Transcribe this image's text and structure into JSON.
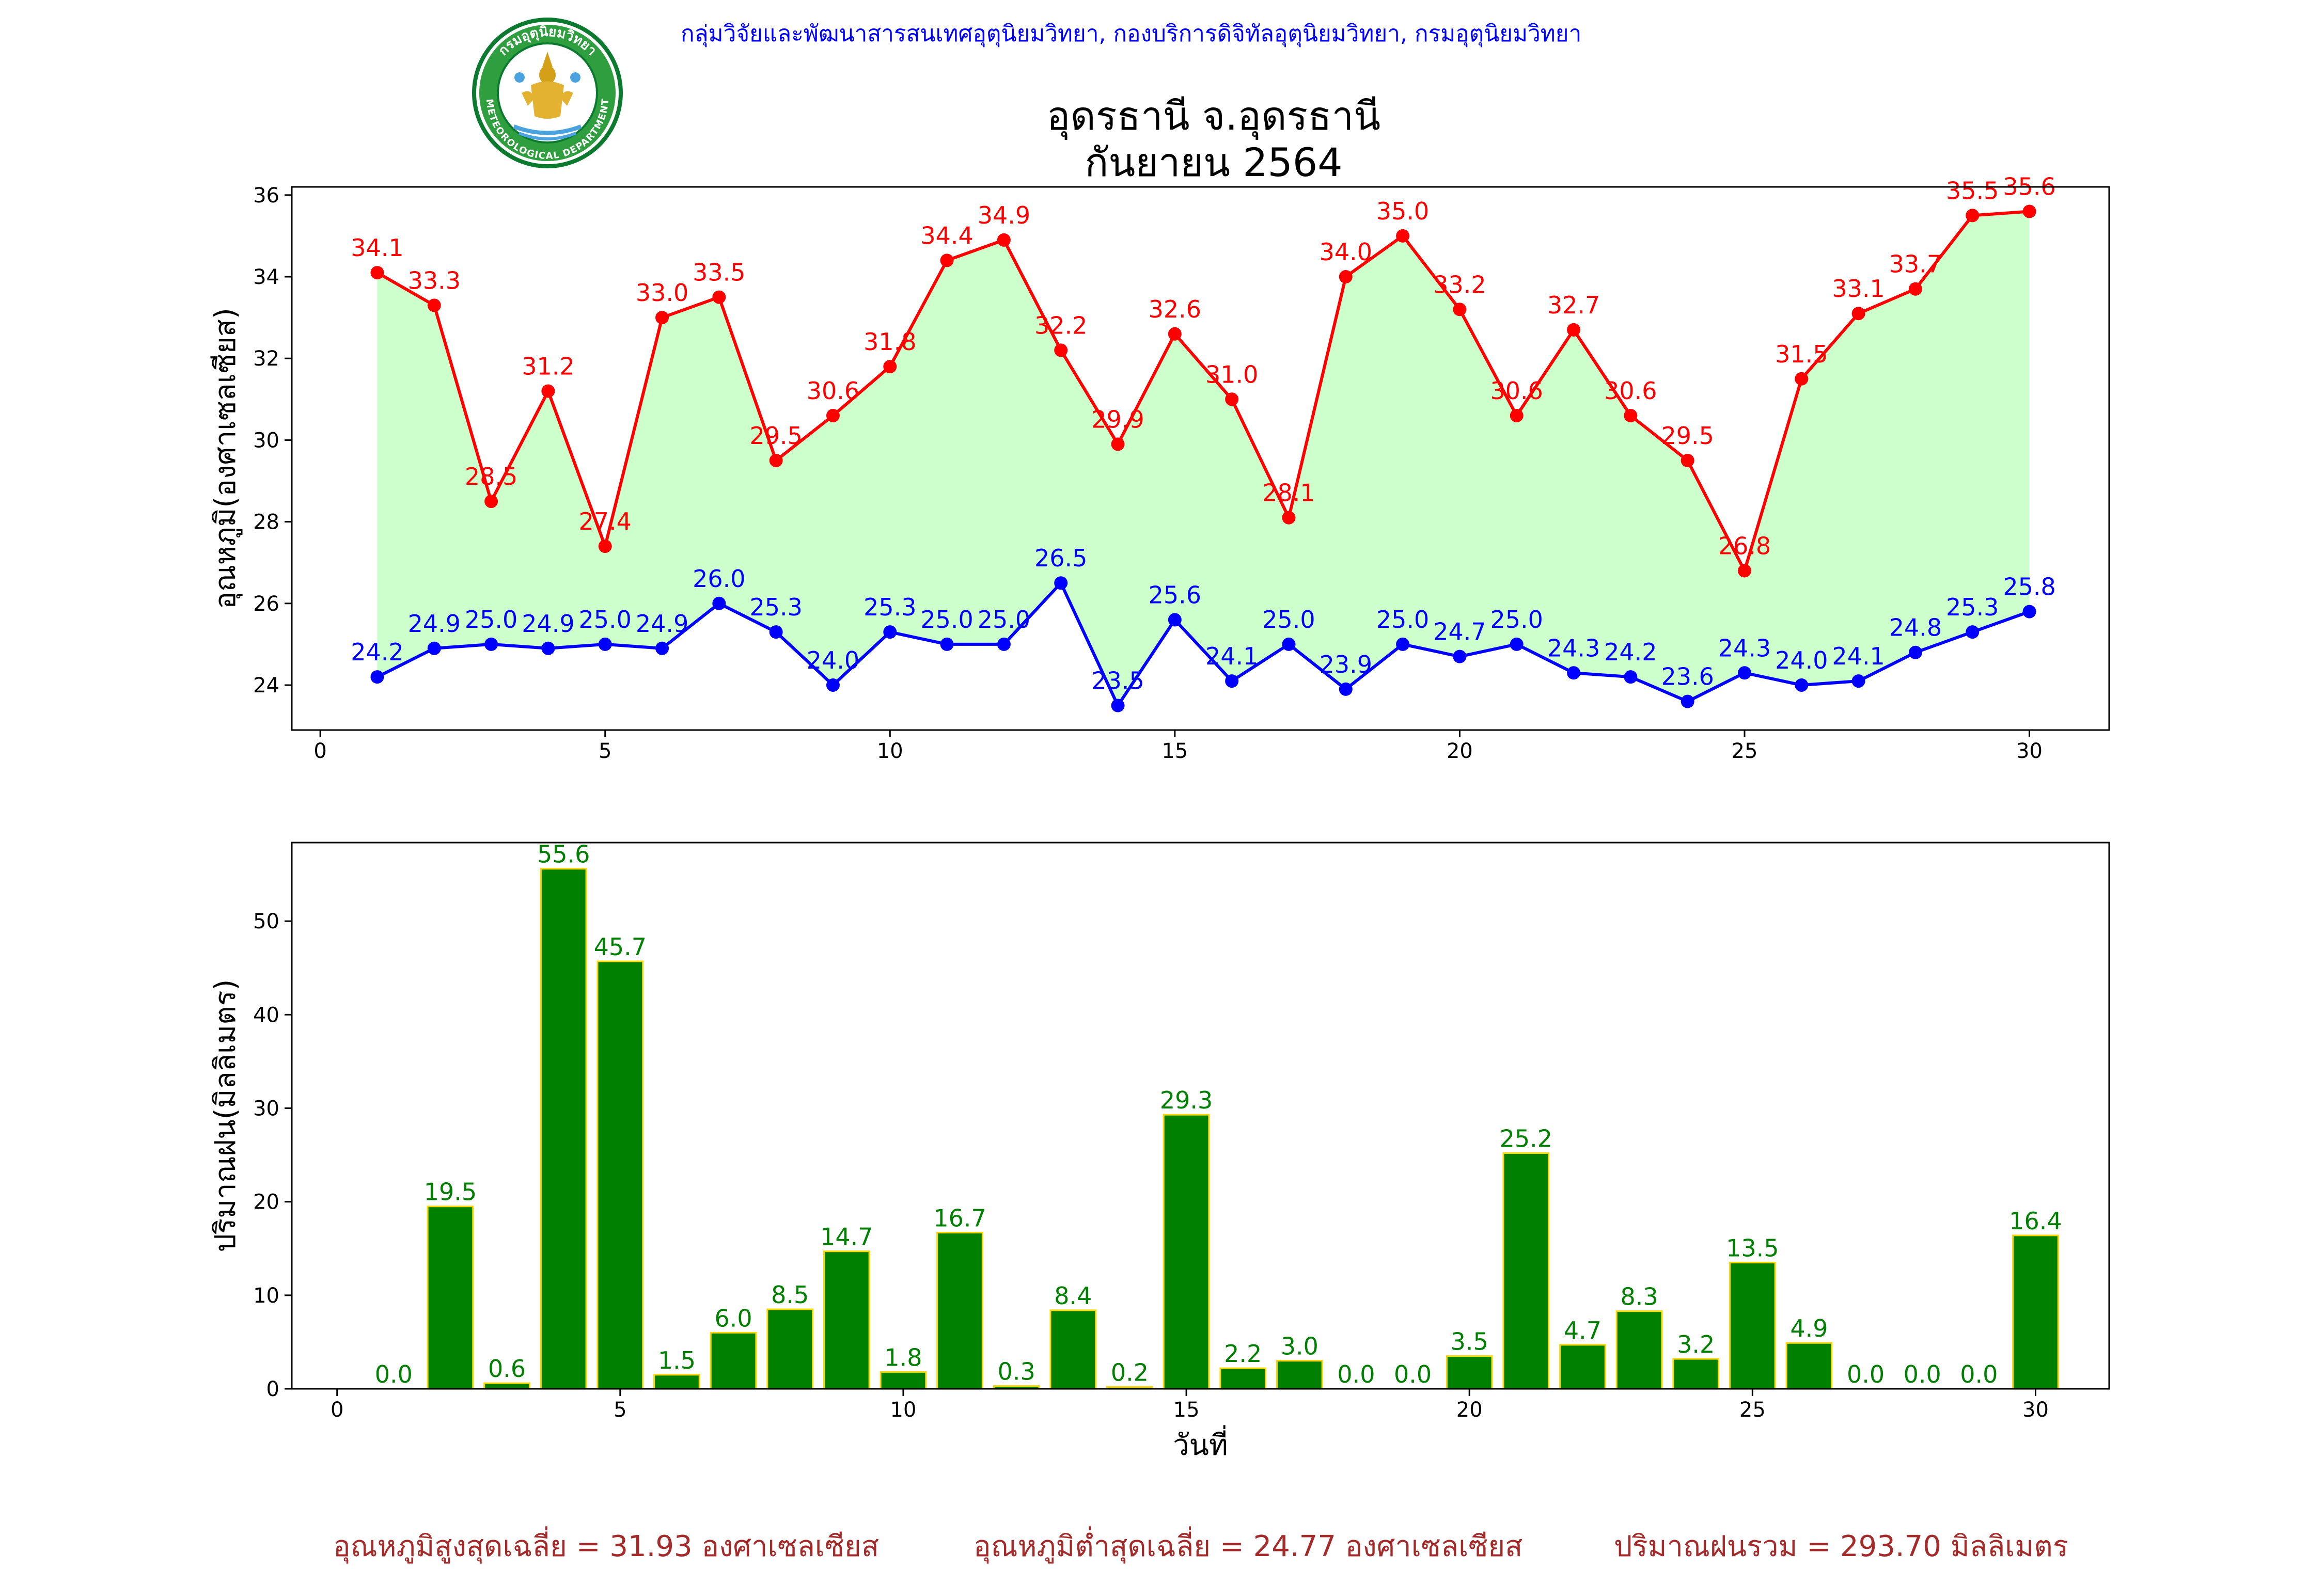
{
  "header": {
    "credit": "กลุ่มวิจัยและพัฒนาสารสนเทศอุตุนิยมวิทยา, กองบริการดิจิทัลอุตุนิยมวิทยา, กรมอุตุนิยมวิทยา",
    "logo_text_top": "กรมอุตุนิยมวิทยา",
    "logo_text_bottom": "METEOROLOGICAL DEPARTMENT",
    "title_line1": "อุดรธานี จ.อุดรธานี",
    "title_line2": "กันยายน 2564"
  },
  "footer": {
    "avg_max": "อุณหภูมิสูงสุดเฉลี่ย = 31.93 องศาเซลเซียส",
    "avg_min": "อุณหภูมิต่ำสุดเฉลี่ย = 24.77 องศาเซลเซียส",
    "total_rain": "ปริมาณฝนรวม = 293.70 มิลลิเมตร"
  },
  "colors": {
    "max_line": "#ff0000",
    "min_line": "#0000ff",
    "fill": "#ccffcc",
    "rain_bar": "#008000",
    "rain_edge": "#ffd700",
    "rain_label": "#008000"
  },
  "chart_data": [
    {
      "type": "line",
      "xlabel": "",
      "ylabel": "อุณหภูมิ(องศาเซลเซียส)",
      "xlim": [
        -0.5,
        31.4
      ],
      "ylim": [
        22.9,
        36.2
      ],
      "xticks": [
        0,
        5,
        10,
        15,
        20,
        25,
        30
      ],
      "yticks": [
        24,
        26,
        28,
        30,
        32,
        34,
        36
      ],
      "x": [
        1,
        2,
        3,
        4,
        5,
        6,
        7,
        8,
        9,
        10,
        11,
        12,
        13,
        14,
        15,
        16,
        17,
        18,
        19,
        20,
        21,
        22,
        23,
        24,
        25,
        26,
        27,
        28,
        29,
        30
      ],
      "series": [
        {
          "values": [
            34.1,
            33.3,
            28.5,
            31.2,
            27.4,
            33.0,
            33.5,
            29.5,
            30.6,
            31.8,
            34.4,
            34.9,
            32.2,
            29.9,
            32.6,
            31.0,
            28.1,
            34.0,
            35.0,
            33.2,
            30.6,
            32.7,
            30.6,
            29.5,
            26.8,
            31.5,
            33.1,
            33.7,
            35.5,
            35.6
          ]
        },
        {
          "values": [
            24.2,
            24.9,
            25.0,
            24.9,
            25.0,
            24.9,
            26.0,
            25.3,
            24.0,
            25.3,
            25.0,
            25.0,
            26.5,
            23.5,
            25.6,
            24.1,
            25.0,
            23.9,
            25.0,
            24.7,
            25.0,
            24.3,
            24.2,
            23.6,
            24.3,
            24.0,
            24.1,
            24.8,
            25.3,
            25.8
          ]
        }
      ]
    },
    {
      "type": "bar",
      "xlabel": "วันที่",
      "ylabel": "ปริมาณฝน(มิลลิเมตร)",
      "xlim": [
        -0.8,
        31.3
      ],
      "ylim": [
        0,
        58.4
      ],
      "xticks": [
        0,
        5,
        10,
        15,
        20,
        25,
        30
      ],
      "yticks": [
        0,
        10,
        20,
        30,
        40,
        50
      ],
      "x": [
        1,
        2,
        3,
        4,
        5,
        6,
        7,
        8,
        9,
        10,
        11,
        12,
        13,
        14,
        15,
        16,
        17,
        18,
        19,
        20,
        21,
        22,
        23,
        24,
        25,
        26,
        27,
        28,
        29,
        30
      ],
      "values": [
        0.0,
        19.5,
        0.6,
        55.6,
        45.7,
        1.5,
        6.0,
        8.5,
        14.7,
        1.8,
        16.7,
        0.3,
        8.4,
        0.2,
        29.3,
        2.2,
        3.0,
        0.0,
        0.0,
        3.5,
        25.2,
        4.7,
        8.3,
        3.2,
        13.5,
        4.9,
        0.0,
        0.0,
        0.0,
        16.4
      ]
    }
  ]
}
